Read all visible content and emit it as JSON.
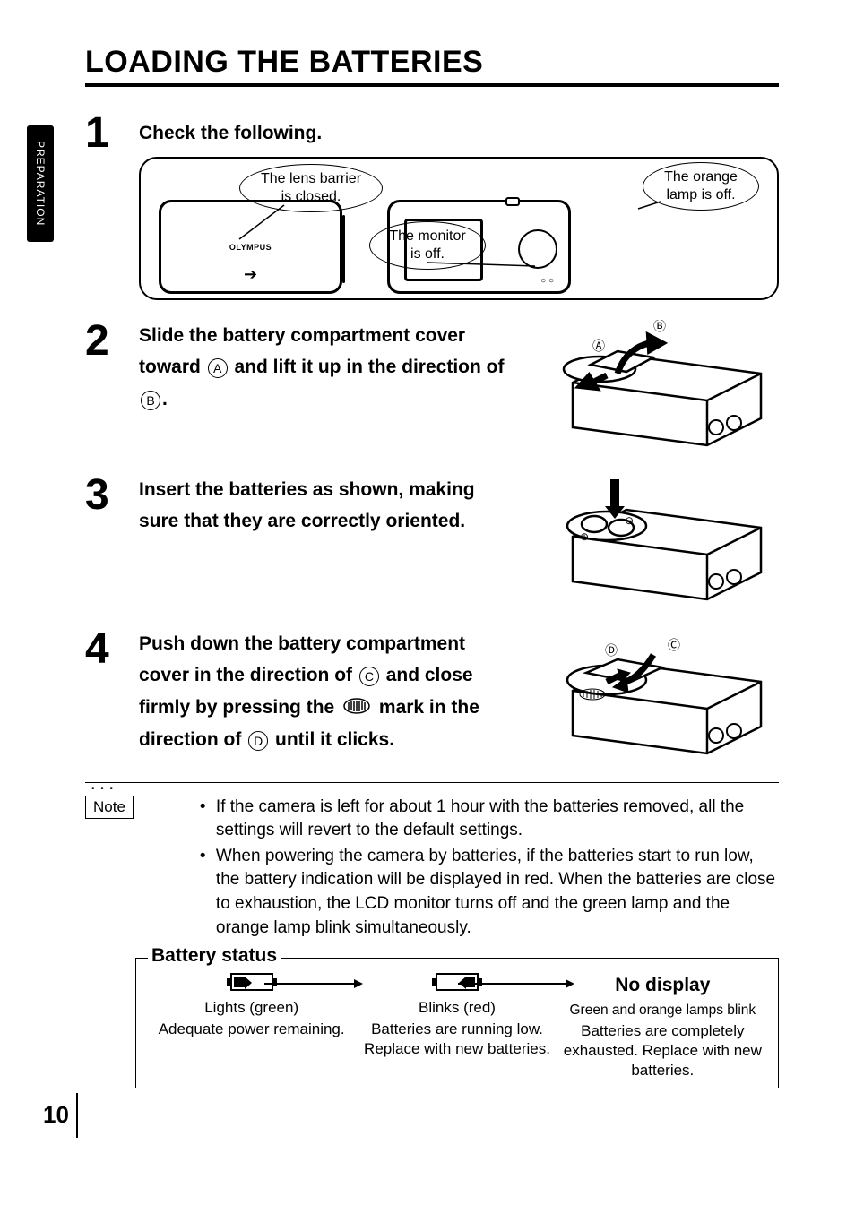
{
  "page_number": "10",
  "side_tab": "PREPARATION",
  "title": "LOADING THE BATTERIES",
  "steps": {
    "s1": {
      "num": "1",
      "heading": "Check the following."
    },
    "s2": {
      "num": "2",
      "heading_parts": {
        "a": "Slide the battery compartment cover toward ",
        "A": "A",
        "b": " and lift it up in the direction of ",
        "B": "B",
        "c": "."
      }
    },
    "s3": {
      "num": "3",
      "heading": "Insert the batteries as shown, making sure that they are correctly oriented."
    },
    "s4": {
      "num": "4",
      "heading_parts": {
        "a": "Push down the battery compartment cover in the direction of ",
        "C": "C",
        "b": " and close firmly by pressing the ",
        "c": " mark in the direction of ",
        "D": "D",
        "d": " until it clicks."
      }
    }
  },
  "callouts": {
    "lens": "The lens barrier\nis closed.",
    "monitor": "The monitor\nis off.",
    "lamp": "The orange\nlamp is off."
  },
  "brand": "OLYMPUS",
  "note_label": "Note",
  "notes": [
    "If the camera is left for about 1 hour with the batteries removed, all the settings will revert to the default settings.",
    "When powering the camera by batteries, if the batteries start to run low, the battery indication will be displayed in red. When the batteries are close to exhaustion, the LCD monitor turns off and the green lamp and the orange lamp blink simultaneously."
  ],
  "status": {
    "title": "Battery status",
    "cols": [
      {
        "label": "Lights (green)",
        "desc": "Adequate power remaining."
      },
      {
        "label": "Blinks (red)",
        "desc": "Batteries are running low. Replace with new batteries."
      },
      {
        "heading": "No display",
        "label": "Green and orange lamps blink",
        "desc": "Batteries are completely exhausted. Replace with new batteries."
      }
    ]
  },
  "circ_labels": {
    "A": "A",
    "B": "B",
    "C": "C",
    "D": "D"
  }
}
